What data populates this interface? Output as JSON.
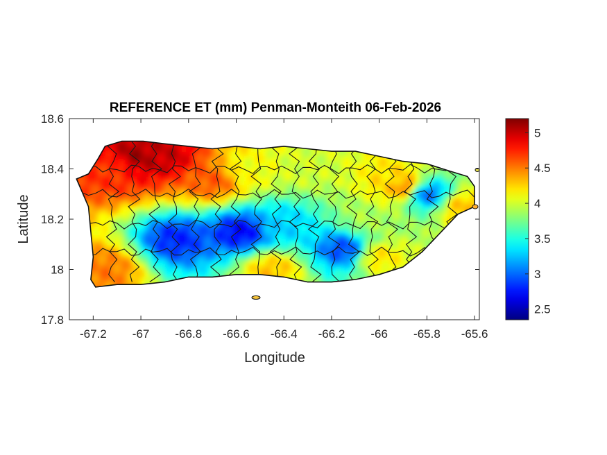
{
  "map": {
    "title": "REFERENCE ET (mm) Penman-Monteith 06-Feb-2026",
    "xlabel": "Longitude",
    "ylabel": "Latitude",
    "xlim": [
      -67.3,
      -65.58
    ],
    "ylim": [
      17.8,
      18.6
    ],
    "x_ticks": [
      {
        "value": -67.2,
        "label": "-67.2"
      },
      {
        "value": -67.0,
        "label": "-67"
      },
      {
        "value": -66.8,
        "label": "-66.8"
      },
      {
        "value": -66.6,
        "label": "-66.6"
      },
      {
        "value": -66.4,
        "label": "-66.4"
      },
      {
        "value": -66.2,
        "label": "-66.2"
      },
      {
        "value": -66.0,
        "label": "-66"
      },
      {
        "value": -65.8,
        "label": "-65.8"
      },
      {
        "value": -65.6,
        "label": "-65.6"
      }
    ],
    "y_ticks": [
      {
        "value": 18.6,
        "label": "18.6"
      },
      {
        "value": 18.4,
        "label": "18.4"
      },
      {
        "value": 18.2,
        "label": "18.2"
      },
      {
        "value": 18.0,
        "label": "18"
      },
      {
        "value": 17.8,
        "label": "17.8"
      }
    ]
  },
  "colorbar": {
    "clim": [
      2.35,
      5.2
    ],
    "colormap": "jet",
    "ticks": [
      {
        "value": 2.5,
        "label": "2.5"
      },
      {
        "value": 3.0,
        "label": "3"
      },
      {
        "value": 3.5,
        "label": "3.5"
      },
      {
        "value": 4.0,
        "label": "4"
      },
      {
        "value": 4.5,
        "label": "4.5"
      },
      {
        "value": 5.0,
        "label": "5"
      }
    ]
  },
  "chart_data": {
    "type": "heatmap",
    "title": "REFERENCE ET (mm) Penman-Monteith 06-Feb-2026",
    "xlabel": "Longitude",
    "ylabel": "Latitude",
    "xlim": [
      -67.3,
      -65.58
    ],
    "ylim": [
      17.8,
      18.6
    ],
    "clim": [
      2.35,
      5.2
    ],
    "value_unit": "mm",
    "island_outline_lonlat": [
      [
        -67.27,
        18.36
      ],
      [
        -67.22,
        18.38
      ],
      [
        -67.18,
        18.44
      ],
      [
        -67.15,
        18.49
      ],
      [
        -67.08,
        18.51
      ],
      [
        -66.99,
        18.51
      ],
      [
        -66.9,
        18.5
      ],
      [
        -66.8,
        18.49
      ],
      [
        -66.7,
        18.48
      ],
      [
        -66.6,
        18.49
      ],
      [
        -66.5,
        18.48
      ],
      [
        -66.4,
        18.49
      ],
      [
        -66.3,
        18.48
      ],
      [
        -66.2,
        18.47
      ],
      [
        -66.1,
        18.47
      ],
      [
        -66.0,
        18.45
      ],
      [
        -65.9,
        18.43
      ],
      [
        -65.8,
        18.42
      ],
      [
        -65.7,
        18.39
      ],
      [
        -65.63,
        18.37
      ],
      [
        -65.6,
        18.33
      ],
      [
        -65.6,
        18.25
      ],
      [
        -65.67,
        18.22
      ],
      [
        -65.76,
        18.13
      ],
      [
        -65.82,
        18.07
      ],
      [
        -65.9,
        18.01
      ],
      [
        -66.0,
        17.98
      ],
      [
        -66.1,
        17.96
      ],
      [
        -66.2,
        17.95
      ],
      [
        -66.3,
        17.95
      ],
      [
        -66.4,
        17.97
      ],
      [
        -66.5,
        17.98
      ],
      [
        -66.6,
        17.98
      ],
      [
        -66.7,
        17.97
      ],
      [
        -66.8,
        17.97
      ],
      [
        -66.9,
        17.95
      ],
      [
        -67.0,
        17.94
      ],
      [
        -67.1,
        17.94
      ],
      [
        -67.19,
        17.93
      ],
      [
        -67.21,
        17.96
      ],
      [
        -67.2,
        18.05
      ],
      [
        -67.21,
        18.15
      ],
      [
        -67.22,
        18.25
      ],
      [
        -67.27,
        18.36
      ]
    ],
    "value_field_anchors": [
      {
        "lon": -67.02,
        "lat": 18.45,
        "value": 5.1
      },
      {
        "lon": -66.9,
        "lat": 18.45,
        "value": 5.0
      },
      {
        "lon": -67.12,
        "lat": 18.4,
        "value": 4.7
      },
      {
        "lon": -66.7,
        "lat": 18.35,
        "value": 4.6
      },
      {
        "lon": -67.15,
        "lat": 18.0,
        "value": 4.5
      },
      {
        "lon": -66.55,
        "lat": 18.4,
        "value": 4.1
      },
      {
        "lon": -66.3,
        "lat": 18.4,
        "value": 4.0
      },
      {
        "lon": -66.05,
        "lat": 18.2,
        "value": 3.9
      },
      {
        "lon": -65.95,
        "lat": 18.35,
        "value": 4.2
      },
      {
        "lon": -65.9,
        "lat": 18.33,
        "value": 4.5
      },
      {
        "lon": -65.65,
        "lat": 18.25,
        "value": 4.3
      },
      {
        "lon": -66.0,
        "lat": 18.05,
        "value": 4.2
      },
      {
        "lon": -66.85,
        "lat": 18.12,
        "value": 2.8
      },
      {
        "lon": -66.58,
        "lat": 18.15,
        "value": 2.7
      },
      {
        "lon": -66.4,
        "lat": 18.18,
        "value": 3.3
      },
      {
        "lon": -66.15,
        "lat": 18.08,
        "value": 2.9
      },
      {
        "lon": -65.8,
        "lat": 18.3,
        "value": 3.0
      },
      {
        "lon": -66.45,
        "lat": 18.0,
        "value": 4.3
      }
    ]
  }
}
